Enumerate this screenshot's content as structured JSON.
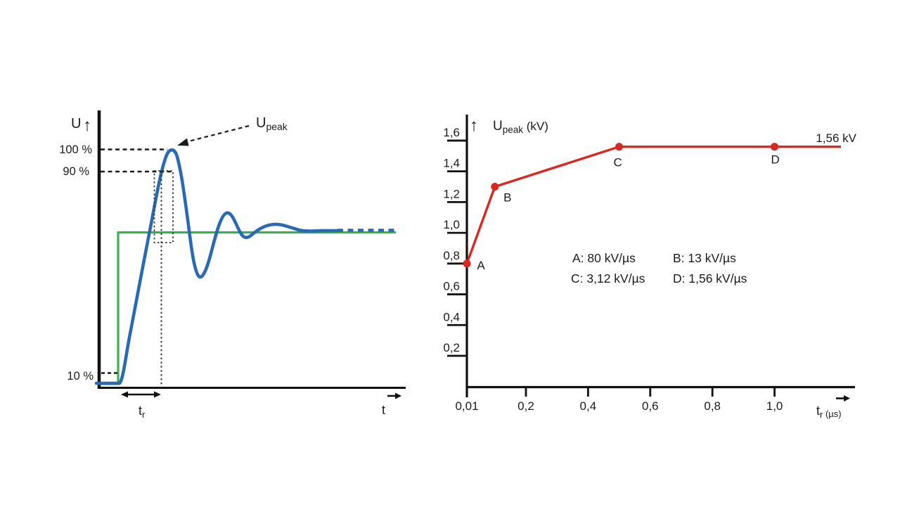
{
  "figure": {
    "background": "#ffffff",
    "ink_color": "#1b1b1b"
  },
  "chart_data": [
    {
      "type": "line",
      "id": "rise-time-definition-diagram",
      "title": "",
      "xlabel": "t",
      "ylabel": "U",
      "peak_pointer_label": {
        "main": "U",
        "sub": "peak"
      },
      "level_labels": {
        "p100": "100 %",
        "p90": "90 %",
        "p10": "10 %"
      },
      "rise_time_label": {
        "main": "t",
        "sub": "r"
      },
      "grid": false,
      "series": [
        {
          "name": "ideal-step-input",
          "color": "#3fae52",
          "shape": "ideal step rising at t0 to 100 % steady-state level"
        },
        {
          "name": "measured-response",
          "color": "#2a6ab0",
          "shape": "rising edge through 10 % and 90 %, overshoot to Upeak at 100 %, damped ringing settling to steady-state (dashed continuation)"
        }
      ],
      "annotations": [
        "Upeak",
        "100 %",
        "90 %",
        "10 %",
        "tr"
      ]
    },
    {
      "type": "line",
      "id": "upeak-vs-rise-time",
      "title": "",
      "ylabel": {
        "main": "U",
        "sub": "peak",
        "unit": " (kV)"
      },
      "xlabel": {
        "main": "t",
        "sub": "r",
        "unit": " (µs)"
      },
      "axis_arrow_icon": "↑",
      "x_ticks": [
        {
          "label": "0,01",
          "value": 0.01
        },
        {
          "label": "0,2",
          "value": 0.2
        },
        {
          "label": "0,4",
          "value": 0.4
        },
        {
          "label": "0,6",
          "value": 0.6
        },
        {
          "label": "0,8",
          "value": 0.8
        },
        {
          "label": "1,0",
          "value": 1.0
        }
      ],
      "y_ticks": [
        {
          "label": "0,2",
          "value": 0.2
        },
        {
          "label": "0,4",
          "value": 0.4
        },
        {
          "label": "0,6",
          "value": 0.6
        },
        {
          "label": "0,8",
          "value": 0.8
        },
        {
          "label": "1,0",
          "value": 1.0
        },
        {
          "label": "1,2",
          "value": 1.2
        },
        {
          "label": "1,4",
          "value": 1.4
        },
        {
          "label": "1,6",
          "value": 1.6
        }
      ],
      "points": [
        {
          "label": "A",
          "tr_us": 0.01,
          "upeak_kv": 0.8,
          "rate": "80 kV/µs"
        },
        {
          "label": "B",
          "tr_us": 0.1,
          "upeak_kv": 1.3,
          "rate": "13 kV/µs"
        },
        {
          "label": "C",
          "tr_us": 0.5,
          "upeak_kv": 1.56,
          "rate": "3,12 kV/µs"
        },
        {
          "label": "D",
          "tr_us": 1.0,
          "upeak_kv": 1.56,
          "rate": "1,56 kV/µs"
        }
      ],
      "plateau": {
        "value_kv": 1.56,
        "end_label": "1,56 kV"
      },
      "legend_lines": [
        "A: 80 kV/µs",
        "B: 13 kV/µs",
        "C: 3,12 kV/µs",
        "D: 1,56 kV/µs"
      ],
      "line_color": "#d92722",
      "xlim": [
        0,
        1.25
      ],
      "ylim": [
        0,
        1.7
      ],
      "grid": false,
      "legend_position": "center-right of plot area"
    }
  ]
}
